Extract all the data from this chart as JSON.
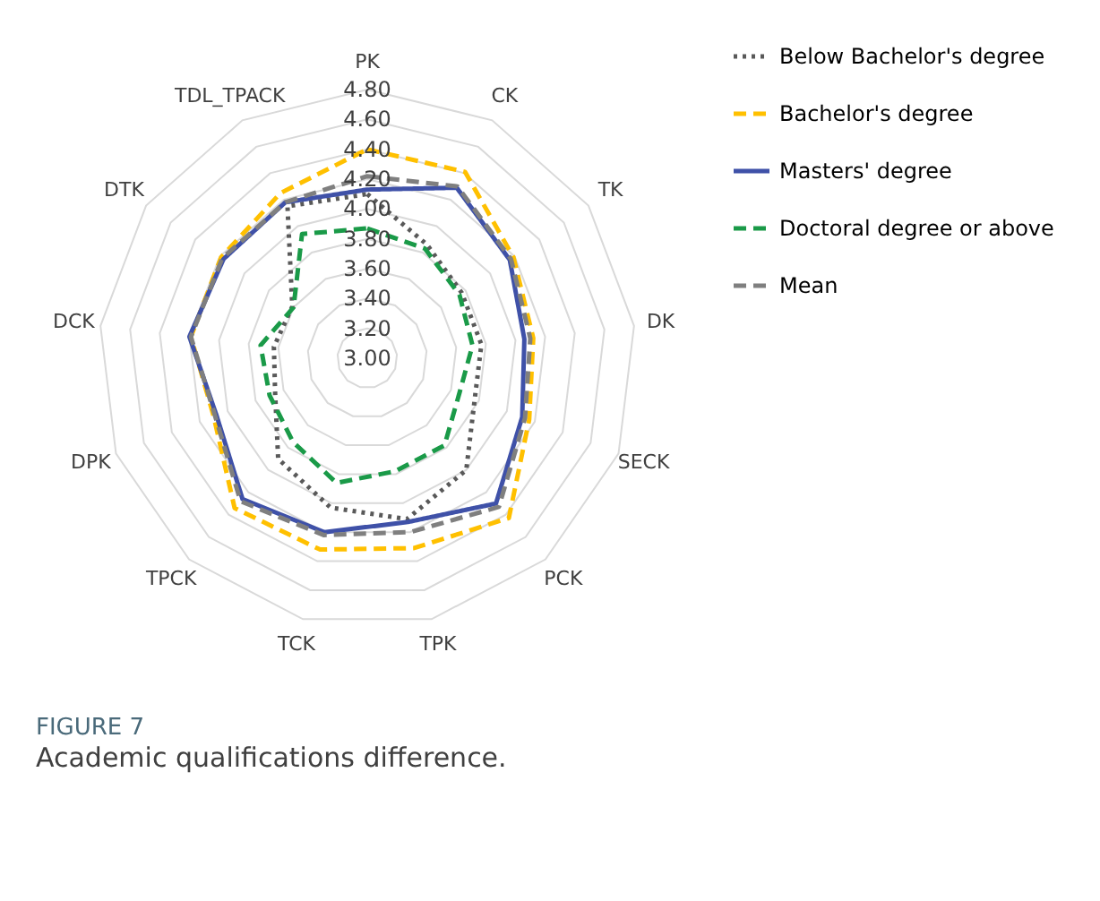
{
  "chart_data": {
    "type": "radar",
    "title": "FIGURE 7",
    "subtitle": "Academic qualifications difference.",
    "categories": [
      "PK",
      "CK",
      "TK",
      "DK",
      "SECK",
      "PCK",
      "TPK",
      "TCK",
      "TPCK",
      "DPK",
      "DCK",
      "DTK",
      "TDL_TPACK"
    ],
    "ylim": [
      3.0,
      4.8
    ],
    "yticks": [
      {
        "value": 3.0,
        "label": "3.00"
      },
      {
        "value": 3.2,
        "label": "3.20"
      },
      {
        "value": 3.4,
        "label": "3.40"
      },
      {
        "value": 3.6,
        "label": "3.60"
      },
      {
        "value": 3.8,
        "label": "3.80"
      },
      {
        "value": 4.0,
        "label": "4.00"
      },
      {
        "value": 4.2,
        "label": "4.20"
      },
      {
        "value": 4.4,
        "label": "4.40"
      },
      {
        "value": 4.6,
        "label": "4.60"
      },
      {
        "value": 4.8,
        "label": "4.80"
      }
    ],
    "grid": true,
    "legend": "right",
    "marker": "none",
    "series": [
      {
        "name": "Below Bachelor's degree",
        "color": "#595959",
        "line_style": "dotted",
        "values": [
          4.1,
          3.86,
          3.77,
          3.77,
          3.77,
          4.0,
          4.11,
          4.03,
          3.9,
          3.66,
          3.63,
          3.61,
          4.15
        ]
      },
      {
        "name": "Bachelor's degree",
        "color": "#ffc000",
        "line_style": "dashed",
        "values": [
          4.4,
          4.41,
          4.19,
          4.12,
          4.16,
          4.43,
          4.31,
          4.32,
          4.34,
          4.1,
          4.19,
          4.19,
          4.25
        ]
      },
      {
        "name": "Masters' degree",
        "color": "#3f51a8",
        "line_style": "solid",
        "values": [
          4.13,
          4.29,
          4.16,
          4.06,
          4.11,
          4.3,
          4.13,
          4.2,
          4.26,
          4.08,
          4.2,
          4.17,
          4.18
        ]
      },
      {
        "name": "Doctoral degree or above",
        "color": "#1a9a48",
        "line_style": "dashed",
        "values": [
          3.87,
          3.83,
          3.75,
          3.71,
          3.66,
          3.78,
          3.78,
          3.86,
          3.75,
          3.7,
          3.72,
          3.6,
          3.94
        ]
      },
      {
        "name": "Mean",
        "color": "#7f7f7f",
        "line_style": "dashed",
        "values": [
          4.22,
          4.3,
          4.17,
          4.1,
          4.13,
          4.33,
          4.2,
          4.22,
          4.28,
          4.09,
          4.19,
          4.18,
          4.18
        ]
      }
    ]
  }
}
